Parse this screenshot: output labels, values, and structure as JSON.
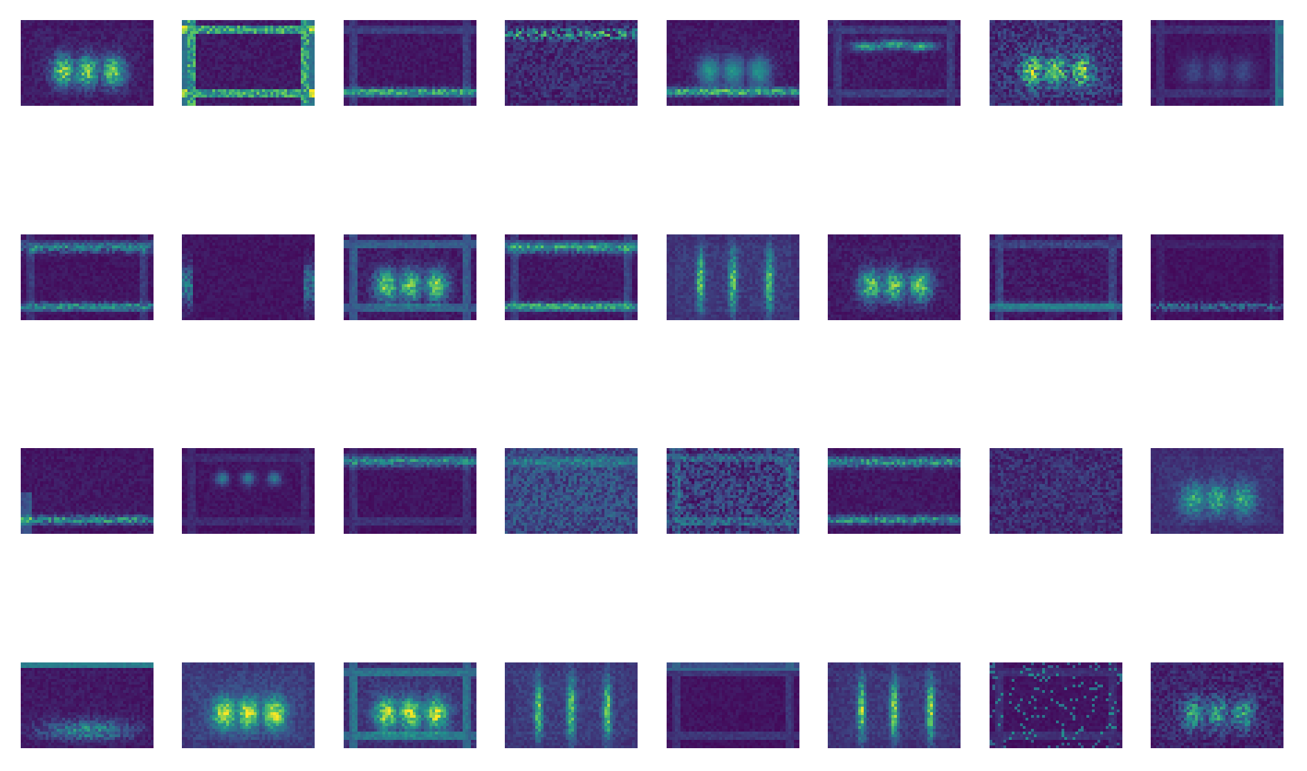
{
  "figure": {
    "grid_rows": 4,
    "grid_cols": 8,
    "colormap": "viridis",
    "background_color": "#ffffff",
    "low_color": "#440154",
    "high_color": "#fde725",
    "tiles": [
      {
        "row": 1,
        "col": 1,
        "pattern": "blobs_center",
        "intensity": 0.85
      },
      {
        "row": 1,
        "col": 2,
        "pattern": "border_frame",
        "intensity": 0.75
      },
      {
        "row": 1,
        "col": 3,
        "pattern": "bottom_band_sparse",
        "intensity": 0.65
      },
      {
        "row": 1,
        "col": 4,
        "pattern": "top_speckle",
        "intensity": 0.7
      },
      {
        "row": 1,
        "col": 5,
        "pattern": "blobs_and_bottom",
        "intensity": 0.8
      },
      {
        "row": 1,
        "col": 6,
        "pattern": "arch_outline",
        "intensity": 0.75
      },
      {
        "row": 1,
        "col": 7,
        "pattern": "speckle_blobs",
        "intensity": 0.85
      },
      {
        "row": 1,
        "col": 8,
        "pattern": "faint_blobs_right_edge",
        "intensity": 0.55
      },
      {
        "row": 2,
        "col": 1,
        "pattern": "frame_top_bottom",
        "intensity": 0.6
      },
      {
        "row": 2,
        "col": 2,
        "pattern": "side_edges",
        "intensity": 0.6
      },
      {
        "row": 2,
        "col": 3,
        "pattern": "three_blobs_framed",
        "intensity": 0.85
      },
      {
        "row": 2,
        "col": 4,
        "pattern": "top_and_bottom_edges",
        "intensity": 0.7
      },
      {
        "row": 2,
        "col": 5,
        "pattern": "vertical_stripes",
        "intensity": 0.8
      },
      {
        "row": 2,
        "col": 6,
        "pattern": "three_blobs_dark",
        "intensity": 0.85
      },
      {
        "row": 2,
        "col": 7,
        "pattern": "bottom_band_wide",
        "intensity": 0.55
      },
      {
        "row": 2,
        "col": 8,
        "pattern": "bottom_dots",
        "intensity": 0.5
      },
      {
        "row": 3,
        "col": 1,
        "pattern": "bottom_band_left",
        "intensity": 0.7
      },
      {
        "row": 3,
        "col": 2,
        "pattern": "three_spots",
        "intensity": 0.6
      },
      {
        "row": 3,
        "col": 3,
        "pattern": "top_band",
        "intensity": 0.6
      },
      {
        "row": 3,
        "col": 4,
        "pattern": "diffuse_texture",
        "intensity": 0.6
      },
      {
        "row": 3,
        "col": 5,
        "pattern": "busy_texture",
        "intensity": 0.65
      },
      {
        "row": 3,
        "col": 6,
        "pattern": "top_bottom_edges_strong",
        "intensity": 0.7
      },
      {
        "row": 3,
        "col": 7,
        "pattern": "diffuse_texture_dim",
        "intensity": 0.5
      },
      {
        "row": 3,
        "col": 8,
        "pattern": "blobs_mid",
        "intensity": 0.7
      },
      {
        "row": 4,
        "col": 1,
        "pattern": "top_edge_blobs_bottom",
        "intensity": 0.75
      },
      {
        "row": 4,
        "col": 2,
        "pattern": "blobs_bright",
        "intensity": 0.9
      },
      {
        "row": 4,
        "col": 3,
        "pattern": "blobs_framed_bright",
        "intensity": 0.9
      },
      {
        "row": 4,
        "col": 4,
        "pattern": "vertical_stripes",
        "intensity": 0.85
      },
      {
        "row": 4,
        "col": 5,
        "pattern": "top_edge_dim",
        "intensity": 0.55
      },
      {
        "row": 4,
        "col": 6,
        "pattern": "vertical_stripes_three",
        "intensity": 0.85
      },
      {
        "row": 4,
        "col": 7,
        "pattern": "sparse_spots",
        "intensity": 0.6
      },
      {
        "row": 4,
        "col": 8,
        "pattern": "blobs_speckle",
        "intensity": 0.7
      }
    ]
  }
}
